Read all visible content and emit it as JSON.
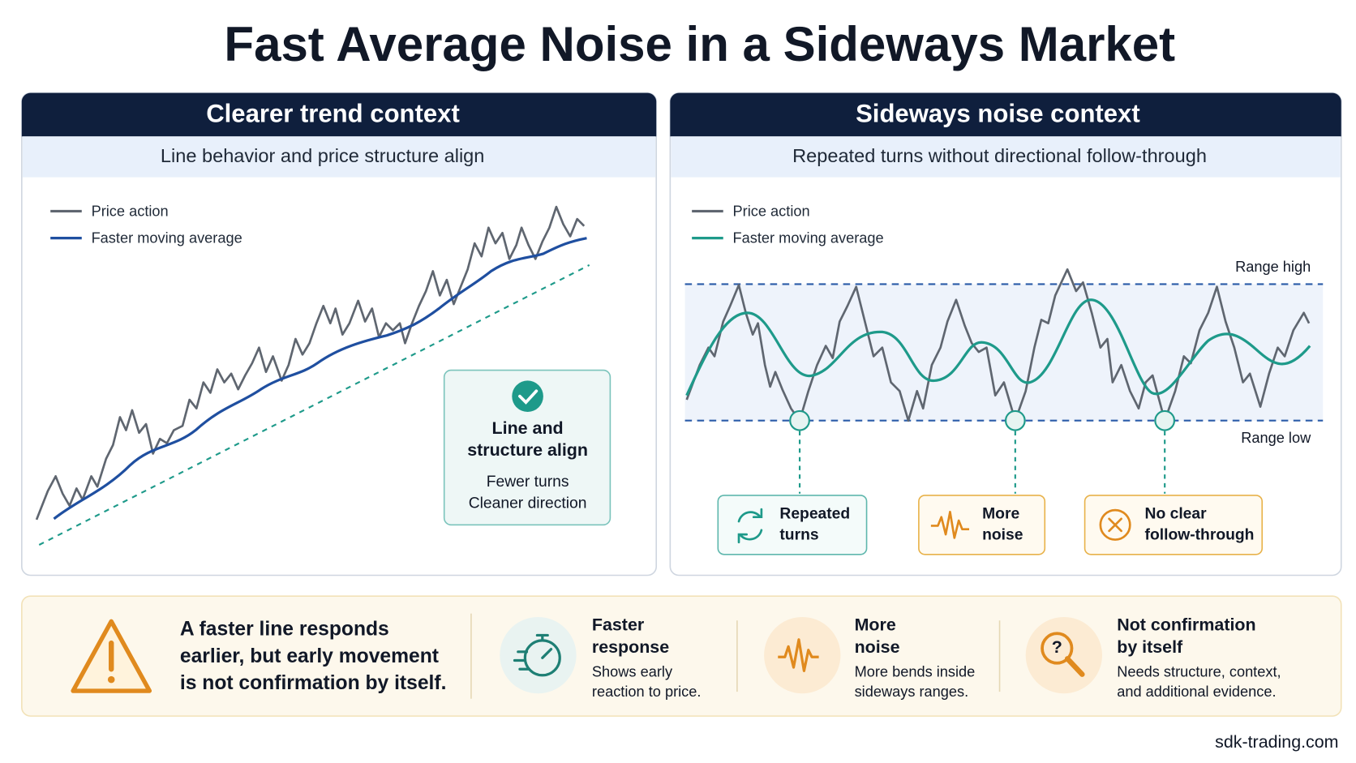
{
  "title": "Fast Average Noise in a Sideways Market",
  "left_panel": {
    "title": "Clearer trend context",
    "subtitle": "Line behavior and price structure align",
    "legend": [
      "Price action",
      "Faster moving average"
    ],
    "callout": {
      "title": [
        "Line and",
        "structure align"
      ],
      "body": [
        "Fewer turns",
        "Cleaner direction"
      ]
    }
  },
  "right_panel": {
    "title": "Sideways noise context",
    "subtitle": "Repeated turns without directional follow-through",
    "legend": [
      "Price action",
      "Faster moving average"
    ],
    "range_high": "Range high",
    "range_low": "Range low",
    "tags": [
      [
        "Repeated",
        "turns"
      ],
      [
        "More",
        "noise"
      ],
      [
        "No clear",
        "follow-through"
      ]
    ]
  },
  "summary": {
    "warning": [
      "A faster line responds",
      "earlier, but early movement",
      "is not confirmation by itself."
    ],
    "items": [
      {
        "title": [
          "Faster",
          "response"
        ],
        "body": [
          "Shows early",
          "reaction to price."
        ]
      },
      {
        "title": [
          "More",
          "noise"
        ],
        "body": [
          "More bends inside",
          "sideways ranges."
        ]
      },
      {
        "title": [
          "Not confirmation",
          "by itself"
        ],
        "body": [
          "Needs structure, context,",
          "and additional evidence."
        ]
      }
    ]
  },
  "footer": "sdk-trading.com"
}
